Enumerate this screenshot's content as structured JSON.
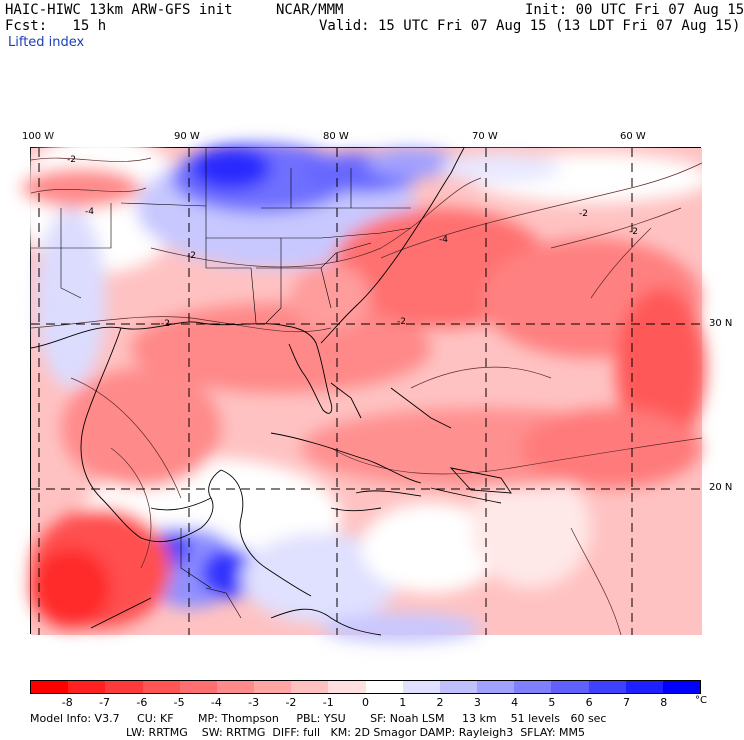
{
  "header": {
    "model_title": "HAIC-HIWC 13km ARW-GFS init",
    "org": "NCAR/MMM",
    "forecast": "Fcst:   15 h",
    "init": "Init: 00 UTC Fri 07 Aug 15",
    "valid": "Valid: 15 UTC Fri 07 Aug 15 (13 LDT Fri 07 Aug 15)",
    "field": "Lifted index"
  },
  "map": {
    "longitude_labels": [
      "100 W",
      "90 W",
      "80 W",
      "70 W",
      "60 W"
    ],
    "latitude_labels": [
      "30 N",
      "20 N"
    ],
    "contour_labels": [
      "-2",
      "-2",
      "-4",
      "-2",
      "-4",
      "-2",
      "-2",
      "-2"
    ]
  },
  "colorbar": {
    "levels": [
      "-8",
      "-7",
      "-6",
      "-5",
      "-4",
      "-3",
      "-2",
      "-1",
      "0",
      "1",
      "2",
      "3",
      "4",
      "5",
      "6",
      "7",
      "8"
    ],
    "unit": "°C",
    "colors": [
      "#ff0000",
      "#ff2020",
      "#ff3a3a",
      "#ff5555",
      "#ff6f6f",
      "#ff8a8a",
      "#ffa5a5",
      "#ffc0c0",
      "#ffe0e0",
      "#ffffff",
      "#e0e0ff",
      "#c0c0ff",
      "#a0a0ff",
      "#8080ff",
      "#6060ff",
      "#4040ff",
      "#2020ff",
      "#0000ff"
    ]
  },
  "footer": {
    "line1": "Model Info: V3.7     CU: KF       MP: Thompson     PBL: YSU       SF: Noah LSM     13 km    51 levels   60 sec",
    "line2": "LW: RRTMG    SW: RRTMG  DIFF: full   KM: 2D Smagor DAMP: Rayleigh3  SFLAY: MM5"
  }
}
